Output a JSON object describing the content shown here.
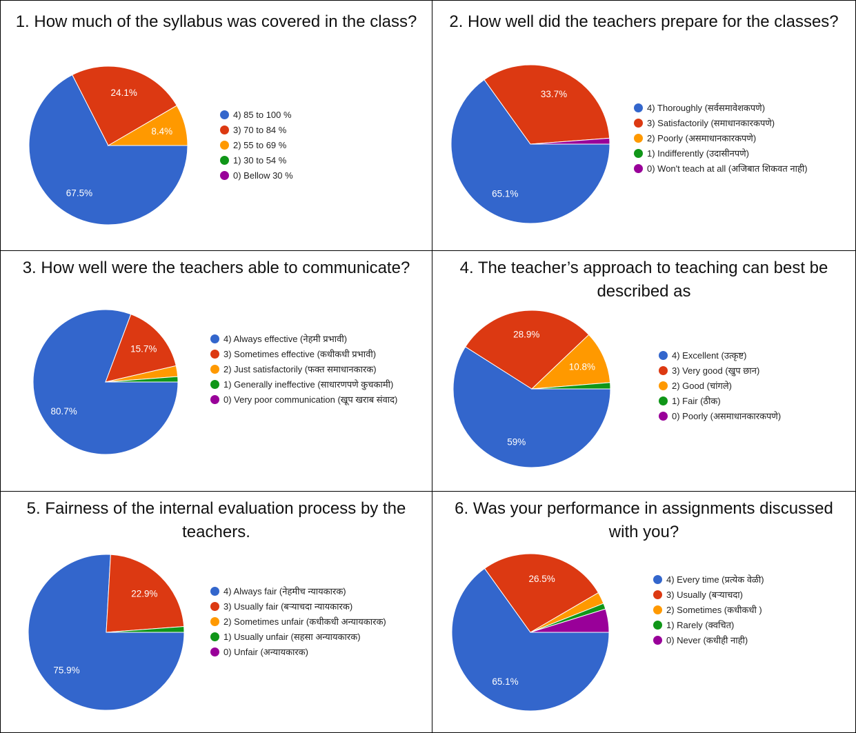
{
  "colors": [
    "#3366cc",
    "#dc3912",
    "#ff9900",
    "#109618",
    "#990099"
  ],
  "chart_data": [
    {
      "type": "pie",
      "title": "1. How much of the syllabus was covered in the class?",
      "labels": [
        "4) 85 to 100 %",
        "3) 70 to 84 %",
        "2) 55 to 69 %",
        "1) 30 to 54 %",
        "0) Bellow 30 %"
      ],
      "values": [
        67.5,
        24.1,
        8.4,
        0,
        0
      ],
      "data_labels": [
        "67.5%",
        "24.1%",
        "8.4%",
        "",
        ""
      ],
      "legend_position": "right"
    },
    {
      "type": "pie",
      "title": "2. How well did the teachers prepare for the classes?",
      "labels": [
        "4) Thoroughly (सर्वसमावेशकपणे)",
        "3) Satisfactorily (समाधानकारकपणे)",
        "2) Poorly (असमाधानकारकपणे)",
        "1) Indifferently (उदासीनपणे)",
        "0) Won't teach at all (अजिबात शिकवत नाही)"
      ],
      "values": [
        65.1,
        33.7,
        0,
        0,
        1.2
      ],
      "data_labels": [
        "65.1%",
        "33.7%",
        "",
        "",
        ""
      ],
      "legend_position": "right"
    },
    {
      "type": "pie",
      "title": "3. How well were the teachers able to communicate?",
      "labels": [
        "4) Always effective (नेहमी प्रभावी)",
        "3) Sometimes effective (कधीकधी प्रभावी)",
        "2) Just satisfactorily (फक्त समाधानकारक)",
        "1) Generally ineffective (साधारणपणे कुचकामी)",
        "0) Very poor communication (खूप खराब संवाद)"
      ],
      "values": [
        80.7,
        15.7,
        2.4,
        1.2,
        0
      ],
      "data_labels": [
        "80.7%",
        "15.7%",
        "",
        "",
        ""
      ],
      "legend_position": "right"
    },
    {
      "type": "pie",
      "title": "4. The teacher’s approach to teaching can best be described as",
      "labels": [
        "4) Excellent (उत्कृष्ट)",
        "3) Very good (खुप छान)",
        "2) Good (चांगले)",
        "1) Fair (ठीक)",
        "0) Poorly (असमाधानकारकपणे)"
      ],
      "values": [
        59,
        28.9,
        10.8,
        1.3,
        0
      ],
      "data_labels": [
        "59%",
        "28.9%",
        "10.8%",
        "",
        ""
      ],
      "legend_position": "right"
    },
    {
      "type": "pie",
      "title": "5. Fairness of the internal evaluation process by the teachers.",
      "labels": [
        "4) Always fair (नेहमीच न्यायकारक)",
        "3) Usually fair (बऱ्याचदा न्यायकारक)",
        "2) Sometimes unfair (कधीकधी अन्यायकारक)",
        "1) Usually unfair (सहसा अन्यायकारक)",
        "0) Unfair (अन्यायकारक)"
      ],
      "values": [
        75.9,
        22.9,
        0,
        1.2,
        0
      ],
      "data_labels": [
        "75.9%",
        "22.9%",
        "",
        "",
        ""
      ],
      "legend_position": "right"
    },
    {
      "type": "pie",
      "title": "6. Was your performance in assignments discussed with you?",
      "labels": [
        "4) Every time (प्रत्येक वेळी)",
        "3) Usually (बऱ्याचदा)",
        "2) Sometimes (कधीकधी )",
        "1) Rarely (क्वचित)",
        "0) Never (कधीही नाही)"
      ],
      "values": [
        65.1,
        26.5,
        2.4,
        1.2,
        4.8
      ],
      "data_labels": [
        "65.1%",
        "26.5%",
        "",
        "",
        ""
      ],
      "legend_position": "right"
    }
  ]
}
